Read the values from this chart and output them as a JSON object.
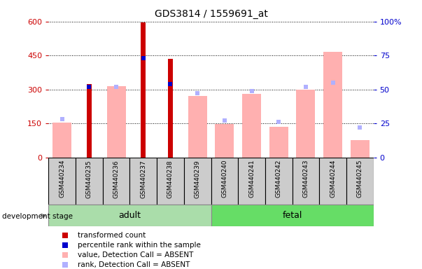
{
  "title": "GDS3814 / 1559691_at",
  "samples": [
    "GSM440234",
    "GSM440235",
    "GSM440236",
    "GSM440237",
    "GSM440238",
    "GSM440239",
    "GSM440240",
    "GSM440241",
    "GSM440242",
    "GSM440243",
    "GSM440244",
    "GSM440245"
  ],
  "adult_count": 6,
  "fetal_count": 6,
  "transformed_count": [
    null,
    325,
    null,
    595,
    435,
    null,
    null,
    null,
    null,
    null,
    null,
    null
  ],
  "percentile_rank": [
    null,
    52,
    null,
    73,
    54,
    null,
    null,
    null,
    null,
    null,
    null,
    null
  ],
  "absent_value": [
    155,
    null,
    315,
    null,
    null,
    270,
    148,
    280,
    135,
    300,
    465,
    75
  ],
  "absent_rank": [
    28,
    null,
    52,
    null,
    null,
    47,
    27,
    49,
    26,
    52,
    55,
    22
  ],
  "left_ylim": [
    0,
    600
  ],
  "right_ylim": [
    0,
    100
  ],
  "left_yticks": [
    0,
    150,
    300,
    450,
    600
  ],
  "right_yticks": [
    0,
    25,
    50,
    75,
    100
  ],
  "left_tick_color": "#cc0000",
  "right_tick_color": "#0000cc",
  "transformed_count_color": "#cc0000",
  "percentile_rank_color": "#0000cc",
  "absent_value_color": "#ffb0b0",
  "absent_rank_color": "#b0b0ff",
  "adult_group_color": "#aaddaa",
  "fetal_group_color": "#66dd66",
  "group_label_adult": "adult",
  "group_label_fetal": "fetal",
  "dev_stage_label": "development stage",
  "figure_bg": "#ffffff",
  "plot_bg": "#ffffff",
  "xtick_box_color": "#cccccc",
  "legend_items": [
    {
      "label": "transformed count",
      "color": "#cc0000"
    },
    {
      "label": "percentile rank within the sample",
      "color": "#0000cc"
    },
    {
      "label": "value, Detection Call = ABSENT",
      "color": "#ffb0b0"
    },
    {
      "label": "rank, Detection Call = ABSENT",
      "color": "#b0b0ff"
    }
  ]
}
